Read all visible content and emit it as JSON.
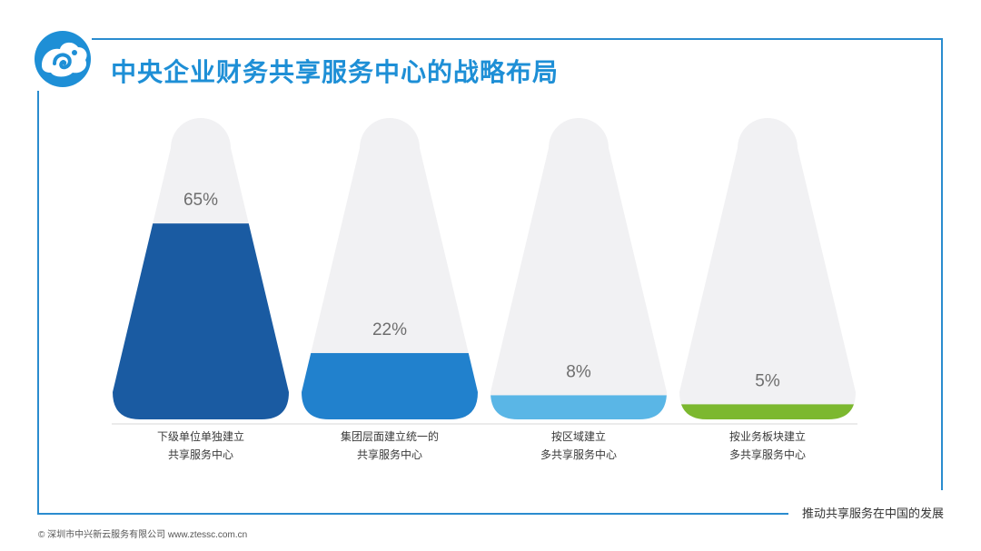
{
  "title": "中央企业财务共享服务中心的战略布局",
  "colors": {
    "frame": "#2a8ccf",
    "title": "#1e8fd6",
    "flask_bg": "#f1f1f3"
  },
  "chart_data": {
    "type": "bar",
    "title": "中央企业财务共享服务中心的战略布局",
    "categories": [
      [
        "下级单位单独建立",
        "共享服务中心"
      ],
      [
        "集团层面建立统一的",
        "共享服务中心"
      ],
      [
        "按区域建立",
        "多共享服务中心"
      ],
      [
        "按业务板块建立",
        "多共享服务中心"
      ]
    ],
    "values": [
      65,
      22,
      8,
      5
    ],
    "value_labels": [
      "65%",
      "22%",
      "8%",
      "5%"
    ],
    "unit": "%",
    "ylim": [
      0,
      100
    ],
    "colors": [
      "#1a5ba2",
      "#2181cd",
      "#5ab6e6",
      "#7cb82f"
    ]
  },
  "footer": {
    "slogan": "推动共享服务在中国的发展",
    "copyright": "© 深圳市中兴新云服务有限公司 www.ztessc.com.cn"
  }
}
